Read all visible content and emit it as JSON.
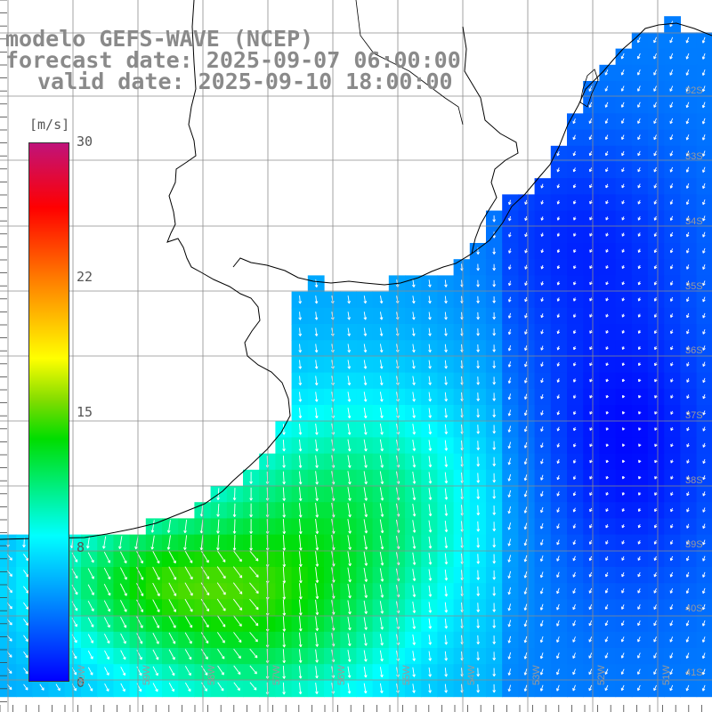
{
  "title": {
    "line1": "modelo GEFS-WAVE (NCEP)",
    "line2": "forecast date: 2025-09-07 06:00:00",
    "line3": "valid date: 2025-09-10 18:00:00"
  },
  "colorbar": {
    "unit": "[m/s]",
    "ticks": [
      "30",
      "22",
      "15",
      "8",
      "0"
    ],
    "tick_values": [
      30,
      22,
      15,
      8,
      0
    ],
    "colors": [
      "#c0137a",
      "#ff0000",
      "#ffa500",
      "#ffff00",
      "#00cc00",
      "#00ffff",
      "#0000ff"
    ]
  },
  "grid": {
    "lat_labels": [
      "32S",
      "33S",
      "34S",
      "35S",
      "36S",
      "37S",
      "38S",
      "39S",
      "40S",
      "41S"
    ],
    "lon_labels": [
      "60W",
      "59W",
      "58W",
      "57W",
      "56W",
      "55W",
      "54W",
      "53W",
      "52W",
      "51W"
    ]
  },
  "map_colors": {
    "land": "#ffffff",
    "grid_line": "#8c8c8c",
    "coast": "#000000",
    "arrow": "#ffffff"
  }
}
